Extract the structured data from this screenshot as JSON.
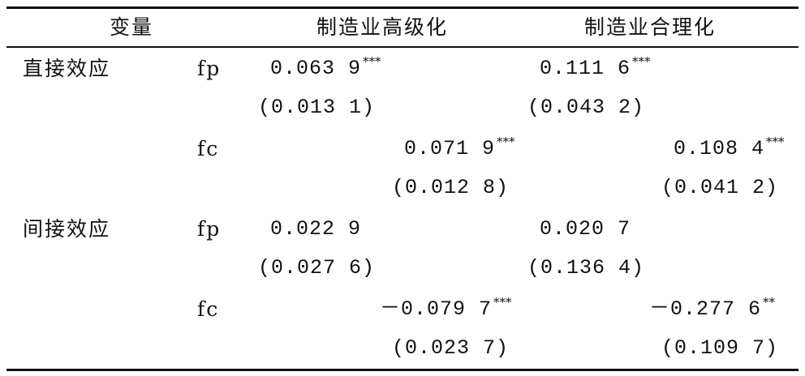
{
  "table": {
    "header": [
      "变量",
      "制造业高级化",
      "制造业合理化"
    ],
    "rows": [
      {
        "group": "直接效应",
        "variable": "fp",
        "coef": [
          "0.063 9",
          "0.111 6"
        ],
        "stars": [
          "***",
          "***"
        ],
        "se": [
          "(0.013 1)",
          "(0.043 2)"
        ]
      },
      {
        "variable": "fc",
        "coef": [
          "0.071 9",
          "0.108 4"
        ],
        "stars": [
          "***",
          "***"
        ],
        "se": [
          "(0.012 8)",
          "(0.041 2)"
        ]
      },
      {
        "group": "间接效应",
        "variable": "fp",
        "coef": [
          "0.022 9",
          "0.020 7"
        ],
        "se": [
          "(0.027 6)",
          "(0.136 4)"
        ]
      },
      {
        "variable": "fc",
        "coef": [
          "－0.079 7",
          "－0.277 6"
        ],
        "stars": [
          "***",
          "**"
        ],
        "se": [
          "(0.023 7)",
          "(0.109 7)"
        ]
      }
    ]
  }
}
